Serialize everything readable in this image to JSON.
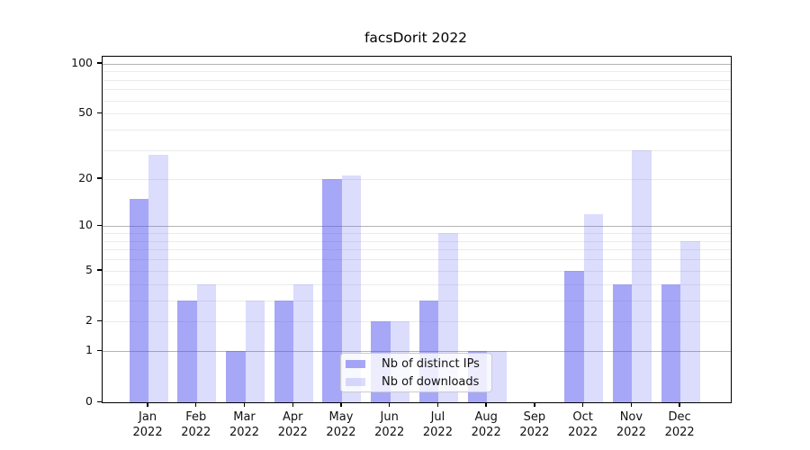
{
  "chart_data": {
    "type": "bar",
    "title": "facsDorit 2022",
    "categories": [
      [
        "Jan",
        "2022"
      ],
      [
        "Feb",
        "2022"
      ],
      [
        "Mar",
        "2022"
      ],
      [
        "Apr",
        "2022"
      ],
      [
        "May",
        "2022"
      ],
      [
        "Jun",
        "2022"
      ],
      [
        "Jul",
        "2022"
      ],
      [
        "Aug",
        "2022"
      ],
      [
        "Sep",
        "2022"
      ],
      [
        "Oct",
        "2022"
      ],
      [
        "Nov",
        "2022"
      ],
      [
        "Dec",
        "2022"
      ]
    ],
    "series": [
      {
        "name": "Nb of distinct IPs",
        "values": [
          15,
          3,
          1,
          3,
          20,
          2,
          3,
          1,
          0,
          5,
          4,
          4
        ],
        "color": "rgba(80,80,240,0.5)"
      },
      {
        "name": "Nb of downloads",
        "values": [
          28,
          4,
          3,
          4,
          21,
          2,
          9,
          1,
          0,
          12,
          30,
          8
        ],
        "color": "rgba(80,80,240,0.2)"
      }
    ],
    "yscale": "log1p",
    "yticks": [
      0,
      1,
      2,
      5,
      10,
      20,
      50,
      100
    ],
    "ylim": [
      0,
      110
    ],
    "xlim": [
      -0.95,
      12.04
    ],
    "bar_width": 0.4,
    "major_gridlines": [
      1,
      10,
      100
    ],
    "minor_gridlines": [
      2,
      3,
      4,
      5,
      6,
      7,
      8,
      9,
      20,
      30,
      40,
      50,
      60,
      70,
      80,
      90
    ],
    "grid_major_color": "#b4b4b4",
    "grid_minor_color": "#ebebeb",
    "legend_position": "lower center inside plot",
    "xlabel": "",
    "ylabel": ""
  }
}
